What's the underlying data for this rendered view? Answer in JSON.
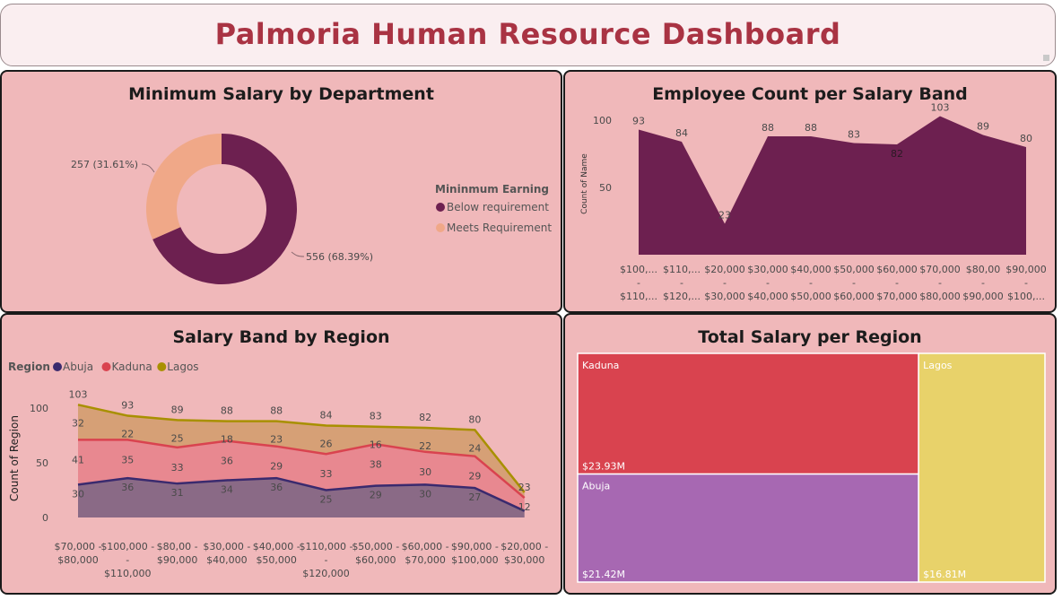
{
  "dashboard": {
    "title": "Palmoria Human Resource Dashboard"
  },
  "chart_data": [
    {
      "type": "pie",
      "title": "Minimum Salary by Department",
      "legend_title": "Mininmum Earning",
      "legend_position": "right",
      "slices": [
        {
          "name": "Below requirement",
          "value": 556,
          "label": "556 (68.39%)",
          "color": "#6d2050"
        },
        {
          "name": "Meets Requirement",
          "value": 257,
          "label": "257 (31.61%)",
          "color": "#f0a888"
        }
      ]
    },
    {
      "type": "area",
      "title": "Employee Count per Salary Band",
      "ylabel": "Count of Name",
      "ylim": [
        0,
        115
      ],
      "yticks": [
        50,
        100
      ],
      "color": "#6d2050",
      "categories": [
        [
          "$100,...",
          "-",
          "$110,..."
        ],
        [
          "$110,...",
          "-",
          "$120,..."
        ],
        [
          "$20,000",
          "-",
          "$30,000"
        ],
        [
          "$30,000",
          "-",
          "$40,000"
        ],
        [
          "$40,000",
          "-",
          "$50,000"
        ],
        [
          "$50,000",
          "-",
          "$60,000"
        ],
        [
          "$60,000",
          "-",
          "$70,000"
        ],
        [
          "$70,000",
          "-",
          "$80,000"
        ],
        [
          "$80,00",
          "-",
          "$90,000"
        ],
        [
          "$90,000",
          "-",
          "$100,..."
        ]
      ],
      "values": [
        93,
        84,
        23,
        88,
        88,
        83,
        82,
        103,
        89,
        80
      ],
      "data_labels": [
        "93",
        "84",
        "23",
        "88",
        "88",
        "83",
        "82",
        "103",
        "89",
        "80"
      ]
    },
    {
      "type": "area",
      "stacked": true,
      "title": "Salary Band by Region",
      "legend_title": "Region",
      "legend_position": "top-left",
      "ylabel": "Count of Region",
      "ylim": [
        0,
        110
      ],
      "yticks": [
        0,
        50,
        100
      ],
      "categories": [
        [
          "$70,000 -",
          "$80,000"
        ],
        [
          "$100,000 -",
          "-",
          "$110,000"
        ],
        [
          "$80,00 -",
          "$90,000"
        ],
        [
          "$30,000 -",
          "$40,000"
        ],
        [
          "$40,000 -",
          "$50,000"
        ],
        [
          "$110,000 -",
          "-",
          "$120,000"
        ],
        [
          "$50,000 -",
          "$60,000"
        ],
        [
          "$60,000 -",
          "$70,000"
        ],
        [
          "$90,000 -",
          "$100,000"
        ],
        [
          "$20,000 -",
          "$30,000"
        ]
      ],
      "series": [
        {
          "name": "Abuja",
          "color": "#3a2a6e",
          "fill": "#8a6a86",
          "values": [
            30,
            36,
            31,
            34,
            36,
            25,
            29,
            30,
            27,
            6
          ]
        },
        {
          "name": "Kaduna",
          "color": "#d9434f",
          "fill": "#e88890",
          "values": [
            41,
            35,
            33,
            36,
            29,
            33,
            38,
            30,
            29,
            12
          ]
        },
        {
          "name": "Lagos",
          "color": "#a89000",
          "fill": "#d6a076",
          "values": [
            32,
            22,
            25,
            18,
            23,
            26,
            16,
            22,
            24,
            5
          ]
        }
      ],
      "labels": {
        "Abuja": [
          "30",
          "36",
          "31",
          "34",
          "36",
          "25",
          "29",
          "30",
          "27",
          ""
        ],
        "Kaduna": [
          "41",
          "35",
          "33",
          "36",
          "29",
          "33",
          "38",
          "30",
          "29",
          "12"
        ],
        "Lagos": [
          "32",
          "22",
          "25",
          "18",
          "23",
          "26",
          "16",
          "22",
          "24",
          ""
        ],
        "Total": [
          "103",
          "93",
          "89",
          "88",
          "88",
          "84",
          "83",
          "82",
          "80",
          "23"
        ]
      }
    },
    {
      "type": "treemap",
      "title": "Total Salary per Region",
      "items": [
        {
          "name": "Kaduna",
          "value": 23.93,
          "label": "$23.93M",
          "color": "#d9434f"
        },
        {
          "name": "Abuja",
          "value": 21.42,
          "label": "$21.42M",
          "color": "#a768b2"
        },
        {
          "name": "Lagos",
          "value": 16.81,
          "label": "$16.81M",
          "color": "#e8d26a"
        }
      ]
    }
  ]
}
